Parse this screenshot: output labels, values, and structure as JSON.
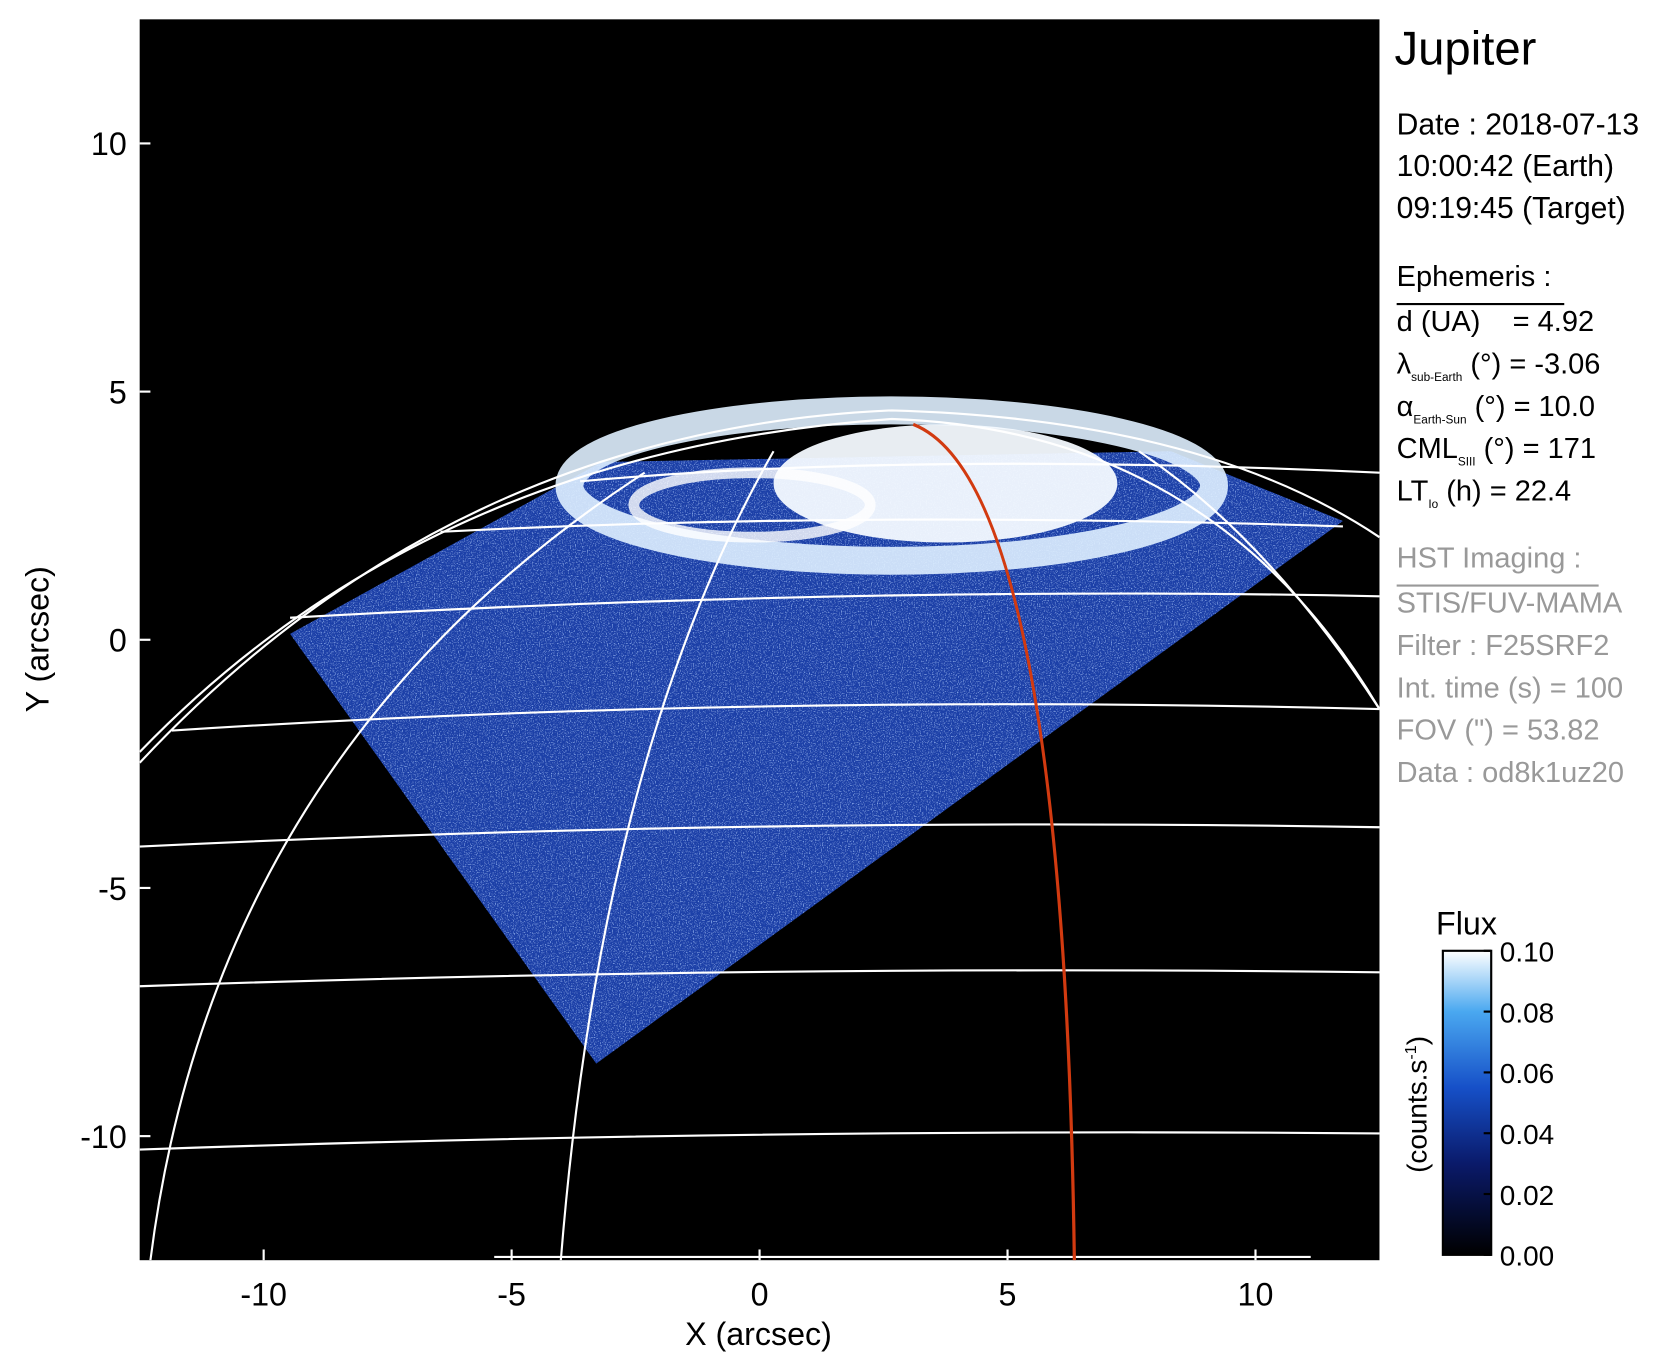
{
  "chart_data": {
    "type": "image",
    "title": "Jupiter",
    "xlabel": "X (arcsec)",
    "ylabel": "Y (arcsec)",
    "xlim": [
      -12.5,
      12.5
    ],
    "ylim": [
      -12.5,
      12.5
    ],
    "xticks": [
      -10,
      -5,
      0,
      5,
      10
    ],
    "yticks": [
      -10,
      -5,
      0,
      5,
      10
    ],
    "date_lines": [
      "Date : 2018-07-13",
      "10:00:42 (Earth)",
      "09:19:45 (Target)"
    ],
    "ephemeris": {
      "heading": "Ephemeris :",
      "lines": [
        {
          "symbol": "d (UA)",
          "sub": "",
          "text": "    = 4.92"
        },
        {
          "symbol": "λ",
          "sub": "sub-Earth",
          "text": " (°) = -3.06"
        },
        {
          "symbol": "α",
          "sub": "Earth-Sun",
          "text": " (°) = 10.0"
        },
        {
          "symbol": "CML",
          "sub": "SIII",
          "text": " (°) = 171"
        },
        {
          "symbol": "LT",
          "sub": "Io",
          "text": " (h) = 22.4"
        }
      ]
    },
    "hst": {
      "heading": "HST Imaging :",
      "lines": [
        "STIS/FUV-MAMA",
        "Filter : F25SRF2",
        "Int. time (s) = 100",
        "FOV (\") = 53.82",
        "Data : od8k1uz20"
      ]
    },
    "colorbar": {
      "title": "Flux",
      "label_parts": [
        "(counts.s",
        "-1",
        ")"
      ],
      "clim": [
        0,
        0.1
      ],
      "ticks": [
        {
          "value": 0,
          "label": "0.00"
        },
        {
          "value": 0.02,
          "label": "0.02"
        },
        {
          "value": 0.04,
          "label": "0.04"
        },
        {
          "value": 0.06,
          "label": "0.06"
        },
        {
          "value": 0.08,
          "label": "0.08"
        },
        {
          "value": 0.1,
          "label": "0.10"
        }
      ]
    }
  }
}
